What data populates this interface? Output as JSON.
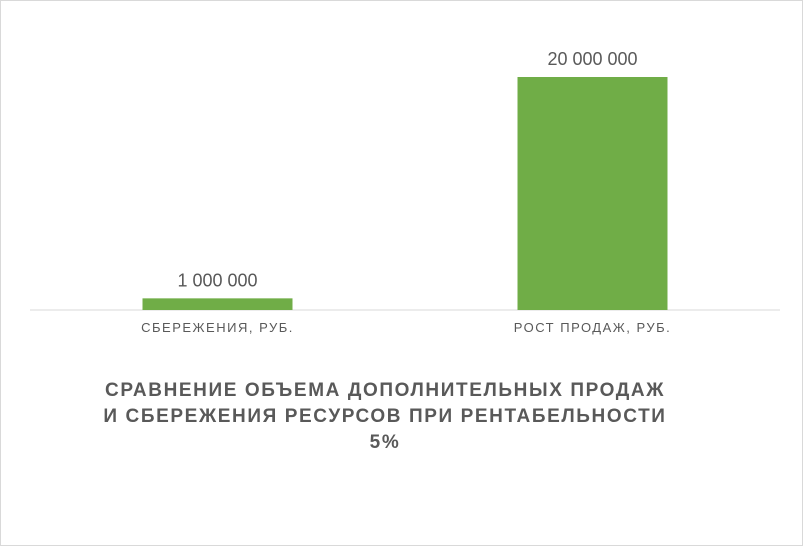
{
  "chart_data": {
    "type": "bar",
    "categories": [
      "СБЕРЕЖЕНИЯ, РУБ.",
      "РОСТ ПРОДАЖ, РУБ."
    ],
    "values": [
      1000000,
      20000000
    ],
    "data_labels": [
      "1 000 000",
      "20 000 000"
    ],
    "title_lines": [
      "СРАВНЕНИЕ ОБЪЕМА ДОПОЛНИТЕЛЬНЫХ ПРОДАЖ",
      "И СБЕРЕЖЕНИЯ РЕСУРСОВ ПРИ РЕНТАБЕЛЬНОСТИ",
      "5%"
    ],
    "bar_color": "#70ad47",
    "axis_color": "#d9d9d9",
    "text_color": "#595959",
    "ylim": [
      0,
      20000000
    ],
    "grid": false,
    "legend": "none"
  }
}
